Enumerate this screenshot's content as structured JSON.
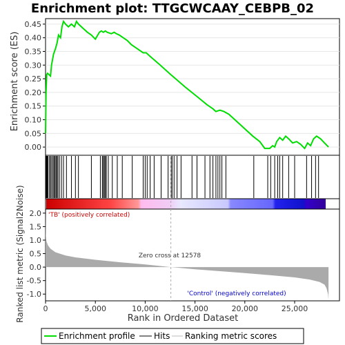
{
  "title": "Enrichment plot: TTGCWCAAY_CEBPB_02",
  "colors": {
    "es_line": "#00dd00",
    "hits": "#000000",
    "metric_fill": "#aaaaaa",
    "zero_cross_line": "#aaaaaa",
    "positive_text": "#cc0000",
    "negative_text": "#0000cc",
    "heat_red": "#ff0000",
    "heat_blue": "#0000ff"
  },
  "legend": {
    "items": [
      {
        "label": "Enrichment profile",
        "icon": "green-line-icon"
      },
      {
        "label": "Hits",
        "icon": "black-line-icon"
      },
      {
        "label": "Ranking metric scores",
        "icon": "gray-line-icon"
      }
    ]
  },
  "annotations": {
    "positive": "'TB' (positively correlated)",
    "negative": "'Control' (negatively correlated)",
    "zero_cross": "Zero cross at 12578"
  },
  "chart_data": [
    {
      "type": "line",
      "name": "enrichment-profile",
      "ylabel": "Enrichment score (ES)",
      "ylim": [
        -0.03,
        0.47
      ],
      "xlim": [
        0,
        29500
      ],
      "yticks": [
        0.0,
        0.05,
        0.1,
        0.15,
        0.2,
        0.25,
        0.3,
        0.35,
        0.4,
        0.45
      ],
      "ytick_labels": [
        "0.00",
        "0.05",
        "0.10",
        "0.15",
        "0.20",
        "0.25",
        "0.30",
        "0.35",
        "0.40",
        "0.45"
      ],
      "grid": true,
      "x": [
        0,
        50,
        120,
        200,
        500,
        600,
        800,
        1000,
        1150,
        1300,
        1500,
        1650,
        1800,
        2000,
        2300,
        2600,
        2900,
        3100,
        3300,
        3600,
        4200,
        4600,
        5000,
        5400,
        5600,
        5800,
        6000,
        6200,
        6600,
        6900,
        7100,
        7400,
        7800,
        8200,
        8600,
        9200,
        9800,
        10100,
        10400,
        11500,
        12578,
        14000,
        15200,
        16200,
        16800,
        17100,
        17500,
        17900,
        18400,
        19000,
        20800,
        21500,
        22000,
        22500,
        22800,
        23000,
        23200,
        23500,
        23800,
        24100,
        24400,
        24800,
        25200,
        25600,
        26000,
        26300,
        26600,
        26900,
        27200,
        27600,
        28000,
        28400
      ],
      "y": [
        0.05,
        0.2,
        0.265,
        0.27,
        0.26,
        0.3,
        0.34,
        0.36,
        0.38,
        0.41,
        0.4,
        0.44,
        0.46,
        0.45,
        0.44,
        0.45,
        0.44,
        0.46,
        0.45,
        0.44,
        0.42,
        0.41,
        0.395,
        0.42,
        0.425,
        0.42,
        0.425,
        0.42,
        0.415,
        0.42,
        0.415,
        0.41,
        0.4,
        0.39,
        0.375,
        0.36,
        0.345,
        0.345,
        0.335,
        0.3,
        0.265,
        0.22,
        0.185,
        0.155,
        0.14,
        0.13,
        0.135,
        0.13,
        0.12,
        0.1,
        0.04,
        0.02,
        -0.005,
        -0.005,
        0.005,
        0.0,
        0.02,
        0.035,
        0.025,
        0.04,
        0.03,
        0.015,
        0.02,
        0.01,
        -0.005,
        0.015,
        0.005,
        0.03,
        0.04,
        0.03,
        0.015,
        0.0
      ]
    },
    {
      "type": "scatter",
      "name": "hits",
      "x": [
        30,
        80,
        120,
        180,
        250,
        400,
        500,
        620,
        750,
        850,
        950,
        1050,
        1150,
        1250,
        1400,
        1600,
        1800,
        2100,
        2600,
        3000,
        3300,
        4600,
        5500,
        5700,
        5800,
        5900,
        6000,
        6100,
        6300,
        6700,
        7200,
        7700,
        8700,
        9800,
        10000,
        10200,
        10500,
        10900,
        11600,
        12300,
        12600,
        12700,
        12900,
        13200,
        13600,
        14700,
        15200,
        16000,
        16500,
        16800,
        17100,
        17300,
        17500,
        17700,
        18100,
        20900,
        22300,
        22600,
        23000,
        23300,
        23500,
        23800,
        24400,
        25000,
        26200,
        26700,
        27100,
        27400
      ]
    },
    {
      "type": "area",
      "name": "ranked-list-metric",
      "xlabel": "Rank in Ordered Dataset",
      "ylabel": "Ranked list metric (Signal2Noise)",
      "ylim": [
        -1.25,
        2.15
      ],
      "xlim": [
        0,
        29500
      ],
      "yticks": [
        -1.0,
        -0.5,
        0.0,
        0.5,
        1.0,
        1.5,
        2.0
      ],
      "ytick_labels": [
        "-1.0",
        "-0.5",
        "0.0",
        "0.5",
        "1.0",
        "1.5",
        "2.0"
      ],
      "xticks": [
        0,
        5000,
        10000,
        15000,
        20000,
        25000
      ],
      "xtick_labels": [
        "0",
        "5,000",
        "10,000",
        "15,000",
        "20,000",
        "25,000"
      ],
      "x": [
        0,
        30,
        100,
        250,
        500,
        1000,
        2000,
        3000,
        5000,
        7500,
        10000,
        12578,
        15000,
        17500,
        20000,
        22500,
        25000,
        26500,
        27500,
        28000,
        28200,
        28350,
        28400
      ],
      "y": [
        2.05,
        1.2,
        0.95,
        0.8,
        0.68,
        0.55,
        0.43,
        0.36,
        0.27,
        0.18,
        0.1,
        0.0,
        -0.08,
        -0.15,
        -0.22,
        -0.3,
        -0.38,
        -0.46,
        -0.55,
        -0.65,
        -0.78,
        -1.0,
        -1.2
      ],
      "zero_cross": 12578
    }
  ]
}
